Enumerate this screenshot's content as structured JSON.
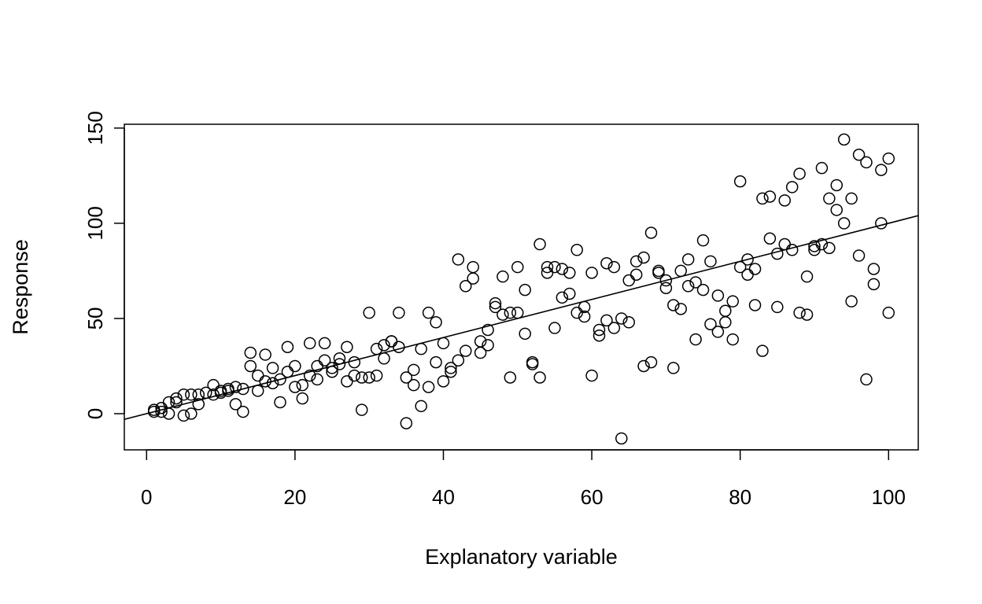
{
  "chart_data": {
    "type": "scatter",
    "title": "",
    "xlabel": "Explanatory variable",
    "ylabel": "Response",
    "xlim": [
      -3,
      104
    ],
    "ylim": [
      -19,
      152
    ],
    "xticks": [
      0,
      20,
      40,
      60,
      80,
      100
    ],
    "yticks": [
      0,
      50,
      100,
      150
    ],
    "grid": false,
    "fit_line": {
      "intercept": 0,
      "slope": 1
    },
    "points": [
      [
        1,
        2
      ],
      [
        1,
        1
      ],
      [
        2,
        3
      ],
      [
        2,
        1
      ],
      [
        3,
        0
      ],
      [
        3,
        6
      ],
      [
        4,
        8
      ],
      [
        4,
        6
      ],
      [
        5,
        -1
      ],
      [
        5,
        10
      ],
      [
        6,
        0
      ],
      [
        6,
        10
      ],
      [
        7,
        5
      ],
      [
        7,
        10
      ],
      [
        8,
        11
      ],
      [
        9,
        15
      ],
      [
        9,
        10
      ],
      [
        10,
        12
      ],
      [
        10,
        11
      ],
      [
        11,
        12
      ],
      [
        11,
        13
      ],
      [
        12,
        5
      ],
      [
        12,
        14
      ],
      [
        13,
        1
      ],
      [
        13,
        13
      ],
      [
        14,
        25
      ],
      [
        14,
        32
      ],
      [
        15,
        12
      ],
      [
        15,
        20
      ],
      [
        16,
        17
      ],
      [
        16,
        31
      ],
      [
        17,
        16
      ],
      [
        17,
        24
      ],
      [
        18,
        6
      ],
      [
        18,
        18
      ],
      [
        19,
        22
      ],
      [
        19,
        35
      ],
      [
        20,
        14
      ],
      [
        20,
        25
      ],
      [
        21,
        8
      ],
      [
        21,
        15
      ],
      [
        22,
        20
      ],
      [
        22,
        37
      ],
      [
        23,
        18
      ],
      [
        23,
        25
      ],
      [
        24,
        28
      ],
      [
        24,
        37
      ],
      [
        25,
        22
      ],
      [
        25,
        24
      ],
      [
        26,
        26
      ],
      [
        26,
        29
      ],
      [
        27,
        17
      ],
      [
        27,
        35
      ],
      [
        28,
        20
      ],
      [
        28,
        27
      ],
      [
        29,
        2
      ],
      [
        29,
        19
      ],
      [
        30,
        19
      ],
      [
        30,
        53
      ],
      [
        31,
        20
      ],
      [
        31,
        34
      ],
      [
        32,
        29
      ],
      [
        32,
        36
      ],
      [
        33,
        38
      ],
      [
        33,
        38
      ],
      [
        34,
        35
      ],
      [
        34,
        53
      ],
      [
        35,
        -5
      ],
      [
        35,
        19
      ],
      [
        36,
        15
      ],
      [
        36,
        23
      ],
      [
        37,
        4
      ],
      [
        37,
        34
      ],
      [
        38,
        14
      ],
      [
        38,
        53
      ],
      [
        39,
        48
      ],
      [
        39,
        27
      ],
      [
        40,
        17
      ],
      [
        40,
        37
      ],
      [
        41,
        22
      ],
      [
        41,
        24
      ],
      [
        42,
        28
      ],
      [
        42,
        81
      ],
      [
        43,
        33
      ],
      [
        43,
        67
      ],
      [
        44,
        71
      ],
      [
        44,
        77
      ],
      [
        45,
        32
      ],
      [
        45,
        38
      ],
      [
        46,
        36
      ],
      [
        46,
        44
      ],
      [
        47,
        56
      ],
      [
        47,
        58
      ],
      [
        48,
        72
      ],
      [
        48,
        52
      ],
      [
        49,
        19
      ],
      [
        49,
        53
      ],
      [
        50,
        53
      ],
      [
        50,
        77
      ],
      [
        51,
        42
      ],
      [
        51,
        65
      ],
      [
        52,
        27
      ],
      [
        52,
        26
      ],
      [
        53,
        89
      ],
      [
        53,
        19
      ],
      [
        54,
        74
      ],
      [
        54,
        77
      ],
      [
        55,
        45
      ],
      [
        55,
        77
      ],
      [
        56,
        61
      ],
      [
        56,
        76
      ],
      [
        57,
        63
      ],
      [
        57,
        74
      ],
      [
        58,
        53
      ],
      [
        58,
        86
      ],
      [
        59,
        51
      ],
      [
        59,
        56
      ],
      [
        60,
        20
      ],
      [
        60,
        74
      ],
      [
        61,
        41
      ],
      [
        61,
        44
      ],
      [
        62,
        49
      ],
      [
        62,
        79
      ],
      [
        63,
        77
      ],
      [
        63,
        45
      ],
      [
        64,
        -13
      ],
      [
        64,
        50
      ],
      [
        65,
        48
      ],
      [
        65,
        70
      ],
      [
        66,
        73
      ],
      [
        66,
        80
      ],
      [
        67,
        25
      ],
      [
        67,
        82
      ],
      [
        68,
        27
      ],
      [
        68,
        95
      ],
      [
        69,
        74
      ],
      [
        69,
        75
      ],
      [
        70,
        66
      ],
      [
        70,
        70
      ],
      [
        71,
        24
      ],
      [
        71,
        57
      ],
      [
        72,
        55
      ],
      [
        72,
        75
      ],
      [
        73,
        81
      ],
      [
        73,
        67
      ],
      [
        74,
        39
      ],
      [
        74,
        69
      ],
      [
        75,
        65
      ],
      [
        75,
        91
      ],
      [
        76,
        80
      ],
      [
        76,
        47
      ],
      [
        77,
        43
      ],
      [
        77,
        62
      ],
      [
        78,
        54
      ],
      [
        78,
        48
      ],
      [
        79,
        39
      ],
      [
        79,
        59
      ],
      [
        80,
        122
      ],
      [
        80,
        77
      ],
      [
        81,
        73
      ],
      [
        81,
        81
      ],
      [
        82,
        57
      ],
      [
        82,
        76
      ],
      [
        83,
        113
      ],
      [
        83,
        33
      ],
      [
        84,
        114
      ],
      [
        84,
        92
      ],
      [
        85,
        56
      ],
      [
        85,
        84
      ],
      [
        86,
        112
      ],
      [
        86,
        89
      ],
      [
        87,
        86
      ],
      [
        87,
        119
      ],
      [
        88,
        126
      ],
      [
        88,
        53
      ],
      [
        89,
        52
      ],
      [
        89,
        72
      ],
      [
        90,
        88
      ],
      [
        90,
        86
      ],
      [
        91,
        129
      ],
      [
        91,
        89
      ],
      [
        92,
        113
      ],
      [
        92,
        87
      ],
      [
        93,
        120
      ],
      [
        93,
        107
      ],
      [
        94,
        144
      ],
      [
        94,
        100
      ],
      [
        95,
        113
      ],
      [
        95,
        59
      ],
      [
        96,
        136
      ],
      [
        96,
        83
      ],
      [
        97,
        132
      ],
      [
        97,
        18
      ],
      [
        98,
        76
      ],
      [
        98,
        68
      ],
      [
        99,
        128
      ],
      [
        99,
        100
      ],
      [
        100,
        134
      ],
      [
        100,
        53
      ]
    ]
  }
}
